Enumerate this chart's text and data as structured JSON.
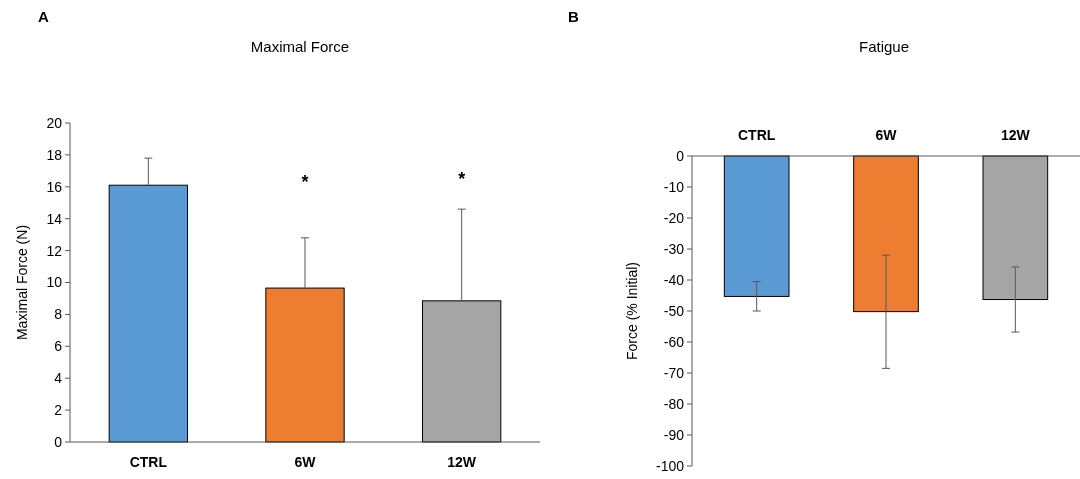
{
  "chart_data": [
    {
      "type": "bar",
      "title": "Maximal Force",
      "ylabel": "Maximal Force (N)",
      "categories": [
        "CTRL",
        "6W",
        "12W"
      ],
      "colors": [
        "#5b9bd5",
        "#ed7d31",
        "#a5a5a5"
      ],
      "values": [
        16.1,
        9.65,
        8.85
      ],
      "errors": [
        [
          16.1,
          17.8
        ],
        [
          9.65,
          12.8
        ],
        [
          8.85,
          14.6
        ]
      ],
      "ylim": [
        0,
        20
      ],
      "yticks": [
        0,
        2,
        4,
        6,
        8,
        10,
        12,
        14,
        16,
        18,
        20
      ],
      "grid": false,
      "annotations": [
        "A",
        "*",
        "*"
      ]
    },
    {
      "type": "bar",
      "title": "Fatigue",
      "ylabel": "Force (% Initial)",
      "categories": [
        "CTRL",
        "6W",
        "12W"
      ],
      "colors": [
        "#5b9bd5",
        "#ed7d31",
        "#a5a5a5"
      ],
      "values": [
        -45.3,
        -50.2,
        -46.3
      ],
      "errors": [
        [
          -50,
          -40.5
        ],
        [
          -68.5,
          -32
        ],
        [
          -56.8,
          -35.8
        ]
      ],
      "ylim": [
        -100,
        0
      ],
      "yticks": [
        -100,
        -90,
        -80,
        -70,
        -60,
        -50,
        -40,
        -30,
        -20,
        -10,
        0
      ],
      "grid": false,
      "annotations": [
        "B"
      ]
    }
  ]
}
